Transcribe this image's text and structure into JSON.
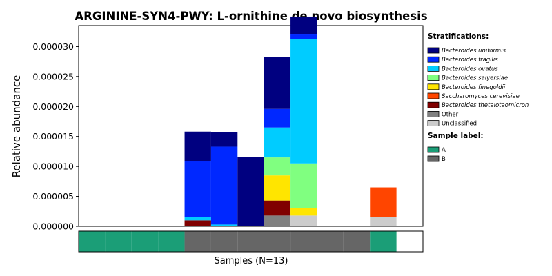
{
  "chart_data": {
    "type": "bar",
    "stacked": true,
    "title": "ARGININE-SYN4-PWY: L-ornithine de novo  biosynthesis",
    "ylabel": "Relative abundance",
    "xlabel": "Samples (N=13)",
    "ylim": [
      0,
      3.35e-05
    ],
    "yticks": [
      "0.000000",
      "0.000005",
      "0.000010",
      "0.000015",
      "0.000020",
      "0.000025",
      "0.000030"
    ],
    "n_samples": 13,
    "legend_title": "Stratifications:",
    "series": [
      {
        "name": "Unclassified",
        "color": "#cccccc",
        "values": [
          0,
          0,
          0,
          0,
          0,
          0,
          0,
          0,
          1.8e-06,
          0,
          0,
          1.5e-06,
          0
        ]
      },
      {
        "name": "Other",
        "color": "#808080",
        "values": [
          0,
          0,
          0,
          0,
          0,
          0,
          0,
          1.8e-06,
          0,
          0,
          0,
          0,
          0
        ]
      },
      {
        "name": "Bacteroides thetaiotaomicron",
        "color": "#800000",
        "values": [
          0,
          0,
          0,
          0,
          1e-06,
          0,
          0,
          2.5e-06,
          0,
          0,
          0,
          0,
          0
        ]
      },
      {
        "name": "Saccharomyces cerevisiae",
        "color": "#ff4500",
        "values": [
          0,
          0,
          0,
          0,
          0,
          0,
          0,
          0,
          0,
          0,
          0,
          5e-06,
          0
        ]
      },
      {
        "name": "Bacteroides finegoldii",
        "color": "#ffe500",
        "values": [
          0,
          0,
          0,
          0,
          0,
          0,
          0,
          4.2e-06,
          1.2e-06,
          0,
          0,
          0,
          0
        ]
      },
      {
        "name": "Bacteroides salyersiae",
        "color": "#80ff80",
        "values": [
          0,
          0,
          0,
          0,
          0,
          0,
          0,
          3e-06,
          7.5e-06,
          0,
          0,
          0,
          0
        ]
      },
      {
        "name": "Bacteroides ovatus",
        "color": "#00ccff",
        "values": [
          0,
          0,
          0,
          0,
          5e-07,
          3e-07,
          0,
          5e-06,
          2.07e-05,
          0,
          0,
          0,
          0
        ]
      },
      {
        "name": "Bacteroides fragilis",
        "color": "#0028ff",
        "values": [
          0,
          0,
          0,
          0,
          9.4e-06,
          1.3e-05,
          0,
          3.1e-06,
          8e-07,
          0,
          0,
          0,
          0
        ]
      },
      {
        "name": "Bacteroides uniformis",
        "color": "#000080",
        "values": [
          0,
          0,
          0,
          0,
          4.9e-06,
          2.4e-06,
          1.16e-05,
          8.7e-06,
          3e-06,
          0,
          0,
          0,
          0
        ]
      }
    ],
    "legend_order": [
      "Bacteroides uniformis",
      "Bacteroides fragilis",
      "Bacteroides ovatus",
      "Bacteroides salyersiae",
      "Bacteroides finegoldii",
      "Saccharomyces cerevisiae",
      "Bacteroides thetaiotaomicron",
      "Other",
      "Unclassified"
    ],
    "sample_label_title": "Sample label:",
    "sample_labels": [
      {
        "name": "A",
        "color": "#1b9e77"
      },
      {
        "name": "B",
        "color": "#666666"
      }
    ],
    "sample_groups": [
      "A",
      "A",
      "A",
      "A",
      "B",
      "B",
      "B",
      "B",
      "B",
      "B",
      "B",
      "A",
      "blank"
    ]
  }
}
